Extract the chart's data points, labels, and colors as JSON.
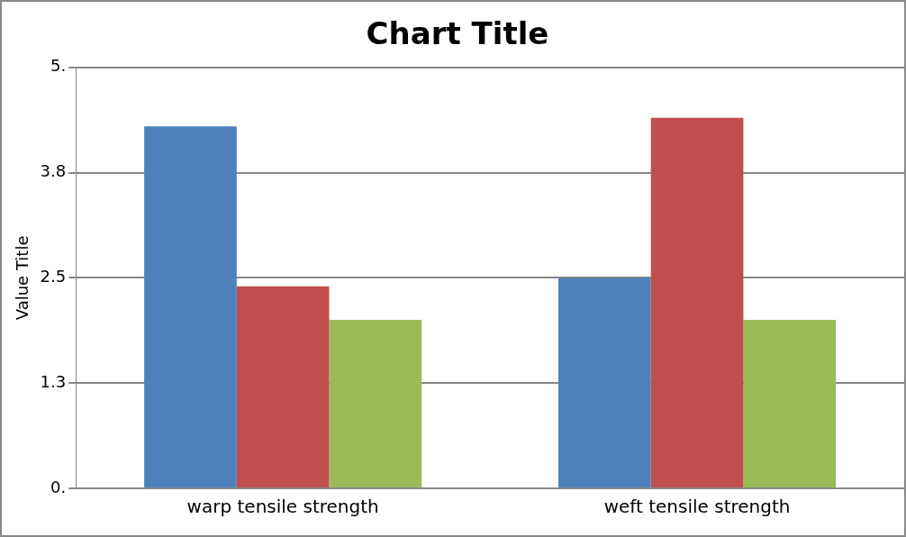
{
  "chart_data": {
    "type": "bar",
    "title": "Chart Title",
    "ylabel": "Value Title",
    "categories": [
      "warp tensile strength",
      "weft tensile strength"
    ],
    "series": [
      {
        "color": "#4f81bd",
        "values": [
          4.3,
          2.5
        ]
      },
      {
        "color": "#c0504d",
        "values": [
          2.4,
          4.4
        ]
      },
      {
        "color": "#9bbb59",
        "values": [
          2.0,
          2.0
        ]
      }
    ],
    "ylim": [
      0,
      5
    ],
    "yticks": [
      {
        "value": 0,
        "label": "0."
      },
      {
        "value": 1.25,
        "label": "1.3"
      },
      {
        "value": 2.5,
        "label": "2.5"
      },
      {
        "value": 3.75,
        "label": "3.8"
      },
      {
        "value": 5,
        "label": "5."
      }
    ],
    "grid": "y",
    "legend": false
  }
}
